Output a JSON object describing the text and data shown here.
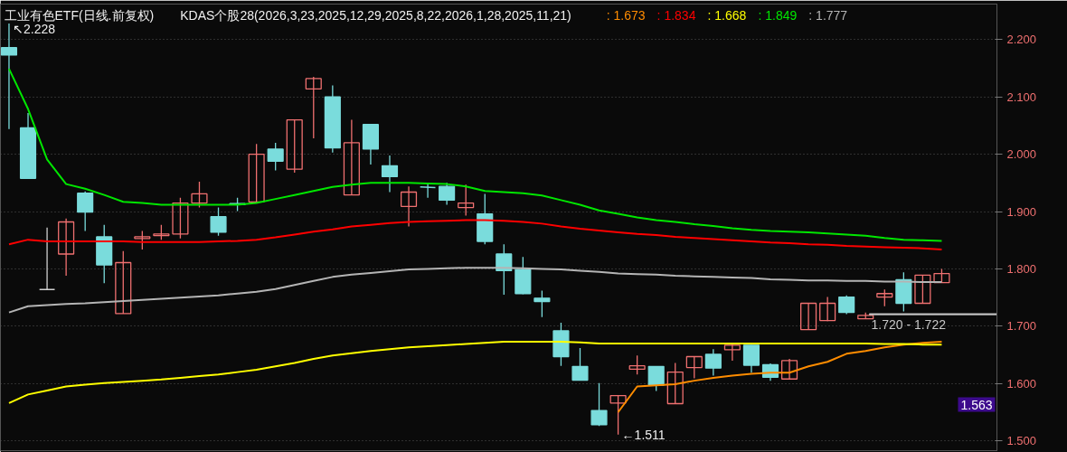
{
  "chart_data": {
    "type": "candlestick",
    "title": "工业有色ETF(日线.前复权)",
    "subtitle": "KDAS个股28(2026,3,23,2025,12,29,2025,8,22,2026,1,28,2025,11,21)",
    "categories": [
      null,
      null,
      null,
      null,
      null,
      null,
      null,
      null,
      null,
      null,
      null,
      null,
      null,
      null,
      null,
      null,
      null,
      null,
      null,
      null,
      null,
      null,
      null,
      null,
      null,
      null,
      null,
      null,
      null,
      null,
      null,
      null,
      null,
      null,
      null,
      null,
      null,
      null,
      null,
      null,
      null,
      null,
      null,
      null,
      null,
      null,
      null,
      null,
      null,
      null
    ],
    "ohlc": [
      [
        2.186,
        2.228,
        2.044,
        2.173
      ],
      [
        2.046,
        2.072,
        1.958,
        1.958
      ],
      [
        1.764,
        1.872,
        1.764,
        1.764
      ],
      [
        1.826,
        1.888,
        1.788,
        1.882
      ],
      [
        1.932,
        1.935,
        1.866,
        1.899
      ],
      [
        1.856,
        1.877,
        1.775,
        1.807
      ],
      [
        1.722,
        1.831,
        1.722,
        1.811
      ],
      [
        1.853,
        1.866,
        1.834,
        1.856
      ],
      [
        1.858,
        1.877,
        1.851,
        1.861
      ],
      [
        1.861,
        1.924,
        1.853,
        1.915
      ],
      [
        1.915,
        1.952,
        1.907,
        1.931
      ],
      [
        1.891,
        1.907,
        1.858,
        1.864
      ],
      [
        1.914,
        1.924,
        1.901,
        1.912
      ],
      [
        1.917,
        2.018,
        1.917,
        2.0
      ],
      [
        2.009,
        2.02,
        1.972,
        1.988
      ],
      [
        1.974,
        2.06,
        1.968,
        2.06
      ],
      [
        2.114,
        2.135,
        2.028,
        2.132
      ],
      [
        2.1,
        2.12,
        2.003,
        2.011
      ],
      [
        1.929,
        2.06,
        1.929,
        2.02
      ],
      [
        2.052,
        2.052,
        1.982,
        2.009
      ],
      [
        1.98,
        1.998,
        1.934,
        1.961
      ],
      [
        1.909,
        1.944,
        1.874,
        1.934
      ],
      [
        1.943,
        1.95,
        1.924,
        1.942
      ],
      [
        1.944,
        1.95,
        1.912,
        1.92
      ],
      [
        1.907,
        1.947,
        1.893,
        1.915
      ],
      [
        1.896,
        1.931,
        1.843,
        1.848
      ],
      [
        1.826,
        1.843,
        1.755,
        1.797
      ],
      [
        1.799,
        1.821,
        1.756,
        1.757
      ],
      [
        1.749,
        1.762,
        1.716,
        1.743
      ],
      [
        1.692,
        1.706,
        1.631,
        1.647
      ],
      [
        1.63,
        1.662,
        1.606,
        1.606
      ],
      [
        1.553,
        1.601,
        1.526,
        1.528
      ],
      [
        1.566,
        1.579,
        1.511,
        1.579
      ],
      [
        1.625,
        1.649,
        1.616,
        1.631
      ],
      [
        1.63,
        1.63,
        1.587,
        1.597
      ],
      [
        1.565,
        1.636,
        1.565,
        1.62
      ],
      [
        1.628,
        1.647,
        1.609,
        1.647
      ],
      [
        1.651,
        1.66,
        1.614,
        1.627
      ],
      [
        1.659,
        1.67,
        1.64,
        1.667
      ],
      [
        1.667,
        1.667,
        1.619,
        1.632
      ],
      [
        1.633,
        1.635,
        1.605,
        1.611
      ],
      [
        1.608,
        1.643,
        1.608,
        1.64
      ],
      [
        1.694,
        1.74,
        1.694,
        1.74
      ],
      [
        1.71,
        1.751,
        1.709,
        1.74
      ],
      [
        1.751,
        1.754,
        1.721,
        1.724
      ],
      [
        1.713,
        1.724,
        1.713,
        1.719
      ],
      [
        1.751,
        1.764,
        1.735,
        1.757
      ],
      [
        1.781,
        1.794,
        1.726,
        1.74
      ],
      [
        1.74,
        1.789,
        1.74,
        1.789
      ],
      [
        1.776,
        1.8,
        1.776,
        1.792
      ]
    ],
    "colors": [
      "#7adcdc",
      "#7adcdc",
      "#d0d0d0",
      "#f07070",
      "#7adcdc",
      "#7adcdc",
      "#f07070",
      "#f07070",
      "#f07070",
      "#f07070",
      "#f07070",
      "#7adcdc",
      "#7adcdc",
      "#f07070",
      "#7adcdc",
      "#f07070",
      "#f07070",
      "#7adcdc",
      "#f07070",
      "#7adcdc",
      "#7adcdc",
      "#f07070",
      "#7adcdc",
      "#7adcdc",
      "#f07070",
      "#7adcdc",
      "#7adcdc",
      "#7adcdc",
      "#7adcdc",
      "#7adcdc",
      "#7adcdc",
      "#7adcdc",
      "#f07070",
      "#f07070",
      "#7adcdc",
      "#f07070",
      "#f07070",
      "#7adcdc",
      "#f07070",
      "#7adcdc",
      "#7adcdc",
      "#f07070",
      "#f07070",
      "#f07070",
      "#7adcdc",
      "#f07070",
      "#f07070",
      "#7adcdc",
      "#f07070",
      "#f07070"
    ],
    "series": [
      {
        "type": "line",
        "name": ": 1.673",
        "color": "#ff8c00",
        "values": [
          null,
          null,
          null,
          null,
          null,
          null,
          null,
          null,
          null,
          null,
          null,
          null,
          null,
          null,
          null,
          null,
          null,
          null,
          null,
          null,
          null,
          null,
          null,
          null,
          null,
          null,
          null,
          null,
          null,
          null,
          null,
          null,
          1.55,
          1.595,
          1.597,
          1.599,
          1.605,
          1.61,
          1.614,
          1.617,
          1.619,
          1.619,
          1.63,
          1.638,
          1.652,
          1.657,
          1.663,
          1.668,
          1.671,
          1.673
        ]
      },
      {
        "type": "line",
        "name": ": 1.834",
        "color": "#ff0000",
        "values": [
          1.843,
          1.851,
          1.848,
          1.848,
          1.848,
          1.848,
          1.848,
          1.847,
          1.847,
          1.847,
          1.847,
          1.848,
          1.849,
          1.851,
          1.855,
          1.86,
          1.865,
          1.869,
          1.874,
          1.877,
          1.88,
          1.882,
          1.883,
          1.884,
          1.885,
          1.885,
          1.884,
          1.882,
          1.879,
          1.874,
          1.87,
          1.867,
          1.864,
          1.861,
          1.859,
          1.856,
          1.854,
          1.852,
          1.85,
          1.848,
          1.846,
          1.845,
          1.843,
          1.842,
          1.84,
          1.839,
          1.838,
          1.837,
          1.836,
          1.834
        ]
      },
      {
        "type": "line",
        "name": ": 1.668",
        "color": "#ffff00",
        "values": [
          1.566,
          1.581,
          1.588,
          1.595,
          1.598,
          1.601,
          1.603,
          1.605,
          1.607,
          1.61,
          1.613,
          1.616,
          1.62,
          1.624,
          1.63,
          1.636,
          1.643,
          1.649,
          1.653,
          1.657,
          1.66,
          1.663,
          1.665,
          1.667,
          1.669,
          1.671,
          1.673,
          1.673,
          1.673,
          1.673,
          1.672,
          1.67,
          1.67,
          1.67,
          1.67,
          1.67,
          1.67,
          1.67,
          1.67,
          1.67,
          1.67,
          1.67,
          1.67,
          1.67,
          1.67,
          1.67,
          1.669,
          1.669,
          1.668,
          1.668
        ]
      },
      {
        "type": "line",
        "name": ": 1.849",
        "color": "#00e600",
        "values": [
          2.149,
          2.079,
          1.991,
          1.948,
          1.94,
          1.929,
          1.917,
          1.915,
          1.912,
          1.912,
          1.912,
          1.912,
          1.912,
          1.915,
          1.922,
          1.929,
          1.936,
          1.943,
          1.947,
          1.95,
          1.95,
          1.95,
          1.949,
          1.948,
          1.944,
          1.936,
          1.934,
          1.932,
          1.928,
          1.92,
          1.912,
          1.902,
          1.896,
          1.89,
          1.885,
          1.882,
          1.878,
          1.875,
          1.871,
          1.868,
          1.866,
          1.865,
          1.864,
          1.862,
          1.86,
          1.858,
          1.854,
          1.851,
          1.85,
          1.849
        ]
      },
      {
        "type": "line",
        "name": ": 1.777",
        "color": "#b4b4b4",
        "values": [
          1.724,
          1.735,
          1.737,
          1.739,
          1.74,
          1.742,
          1.744,
          1.746,
          1.748,
          1.75,
          1.752,
          1.754,
          1.757,
          1.76,
          1.765,
          1.772,
          1.779,
          1.786,
          1.79,
          1.793,
          1.796,
          1.799,
          1.8,
          1.801,
          1.802,
          1.802,
          1.802,
          1.801,
          1.8,
          1.799,
          1.797,
          1.795,
          1.792,
          1.791,
          1.79,
          1.788,
          1.787,
          1.786,
          1.785,
          1.784,
          1.782,
          1.781,
          1.78,
          1.78,
          1.779,
          1.779,
          1.778,
          1.778,
          1.777,
          1.777
        ]
      }
    ],
    "ylim": [
      1.483,
      2.262
    ],
    "yticks": [
      {
        "value": 1.5,
        "label": "1.500"
      },
      {
        "value": 1.6,
        "label": "1.600"
      },
      {
        "value": 1.7,
        "label": "1.700"
      },
      {
        "value": 1.8,
        "label": "1.800"
      },
      {
        "value": 1.9,
        "label": "1.900"
      },
      {
        "value": 2.0,
        "label": "2.000"
      },
      {
        "value": 2.1,
        "label": "2.100"
      },
      {
        "value": 2.2,
        "label": "2.200"
      }
    ],
    "grid": "y",
    "tick_labels": "y",
    "legend": "top",
    "bands": [
      {
        "axis": "y",
        "from": 1.72,
        "to": 1.722,
        "label": "1.720 - 1.722",
        "color": "#c8c8c8"
      }
    ],
    "annotations": [
      "↖2.228",
      "←1.511",
      "1.563"
    ]
  }
}
